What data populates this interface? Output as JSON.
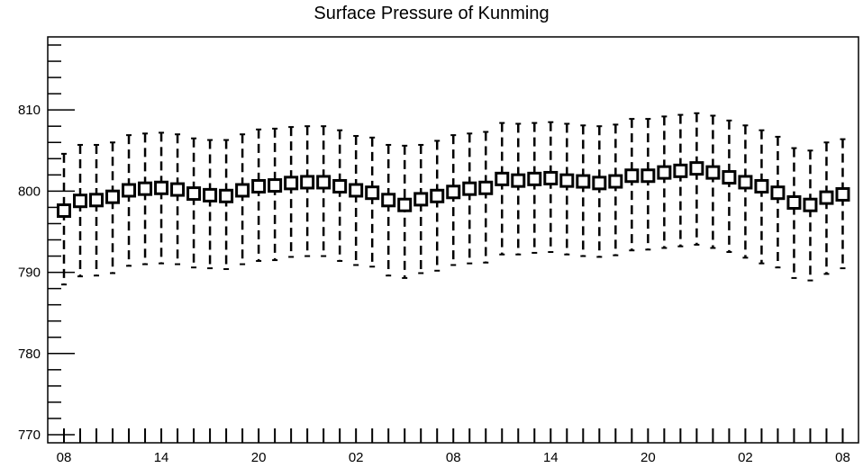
{
  "chart_data": {
    "type": "boxplot",
    "title": "Surface Pressure of Kunming",
    "xlabel": "",
    "ylabel": "",
    "ylim": [
      769,
      819
    ],
    "yticks": [
      770,
      780,
      790,
      800,
      810
    ],
    "xtick_labels": [
      "08",
      "14",
      "20",
      "02",
      "08",
      "14",
      "20",
      "02",
      "08"
    ],
    "xtick_label_interval": 6,
    "time_step_hours": 1,
    "series": [
      {
        "x": [
          0,
          1,
          2,
          3,
          4,
          5,
          6,
          7,
          8,
          9,
          10,
          11,
          12,
          13,
          14,
          15,
          16,
          17,
          18,
          19,
          20,
          21,
          22,
          23,
          24,
          25,
          26,
          27,
          28,
          29,
          30,
          31,
          32,
          33,
          34,
          35,
          36,
          37,
          38,
          39,
          40,
          41,
          42,
          43,
          44,
          45,
          46,
          47,
          48
        ],
        "mean": [
          797.6,
          798.8,
          798.9,
          799.3,
          800.1,
          800.3,
          800.4,
          800.2,
          799.7,
          799.5,
          799.4,
          800.1,
          800.6,
          800.7,
          801.0,
          801.1,
          801.1,
          800.6,
          800.1,
          799.8,
          798.9,
          798.3,
          799.0,
          799.4,
          799.9,
          800.3,
          800.4,
          801.5,
          801.3,
          801.5,
          801.6,
          801.3,
          801.2,
          801.0,
          801.2,
          801.9,
          801.9,
          802.3,
          802.5,
          802.8,
          802.3,
          801.7,
          801.1,
          800.6,
          799.8,
          798.6,
          798.3,
          799.2,
          799.6
        ],
        "upper": [
          804.6,
          805.7,
          805.7,
          806.0,
          806.9,
          807.1,
          807.2,
          807.0,
          806.5,
          806.3,
          806.3,
          807.0,
          807.6,
          807.7,
          807.9,
          808.0,
          808.0,
          807.5,
          806.8,
          806.6,
          805.7,
          805.6,
          805.7,
          806.2,
          806.9,
          807.1,
          807.3,
          808.4,
          808.3,
          808.4,
          808.5,
          808.3,
          808.1,
          808.0,
          808.2,
          808.9,
          808.9,
          809.2,
          809.4,
          809.6,
          809.3,
          808.7,
          808.1,
          807.5,
          806.7,
          805.3,
          805.0,
          806.0,
          806.4
        ],
        "lower": [
          788.5,
          789.5,
          789.6,
          789.9,
          790.8,
          791.0,
          791.1,
          791.0,
          790.6,
          790.5,
          790.4,
          791.0,
          791.4,
          791.5,
          791.9,
          792.0,
          792.0,
          791.4,
          790.9,
          790.7,
          789.6,
          789.3,
          789.9,
          790.2,
          790.9,
          791.1,
          791.2,
          792.2,
          792.2,
          792.4,
          792.5,
          792.2,
          792.0,
          791.9,
          792.1,
          792.7,
          792.8,
          793.0,
          793.2,
          793.4,
          793.0,
          792.5,
          791.8,
          791.1,
          790.6,
          789.3,
          789.0,
          789.8,
          790.5
        ]
      }
    ],
    "grid": false,
    "legend": "none"
  }
}
